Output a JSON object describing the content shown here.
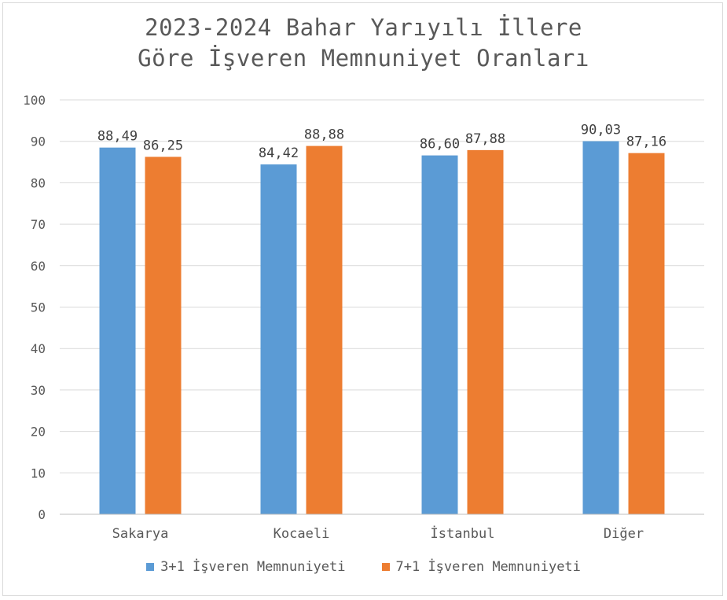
{
  "chart_data": {
    "type": "bar",
    "title_lines": [
      "2023-2024 Bahar Yarıyılı İllere",
      "Göre İşveren Memnuniyet Oranları"
    ],
    "categories": [
      "Sakarya",
      "Kocaeli",
      "İstanbul",
      "Diğer"
    ],
    "series": [
      {
        "name": "3+1 İşveren Memnuniyeti",
        "color": "#5B9BD5",
        "values": [
          88.49,
          84.42,
          86.6,
          90.03
        ],
        "labels": [
          "88,49",
          "84,42",
          "86,60",
          "90,03"
        ]
      },
      {
        "name": "7+1 İşveren Memnuniyeti",
        "color": "#ED7D31",
        "values": [
          86.25,
          88.88,
          87.88,
          87.16
        ],
        "labels": [
          "86,25",
          "88,88",
          "87,88",
          "87,16"
        ]
      }
    ],
    "ylim": [
      0,
      100
    ],
    "yticks": [
      "0",
      "10",
      "20",
      "30",
      "40",
      "50",
      "60",
      "70",
      "80",
      "90",
      "100"
    ],
    "grid": true,
    "legend_position": "bottom",
    "gridline_color": "#d9d9d9"
  }
}
